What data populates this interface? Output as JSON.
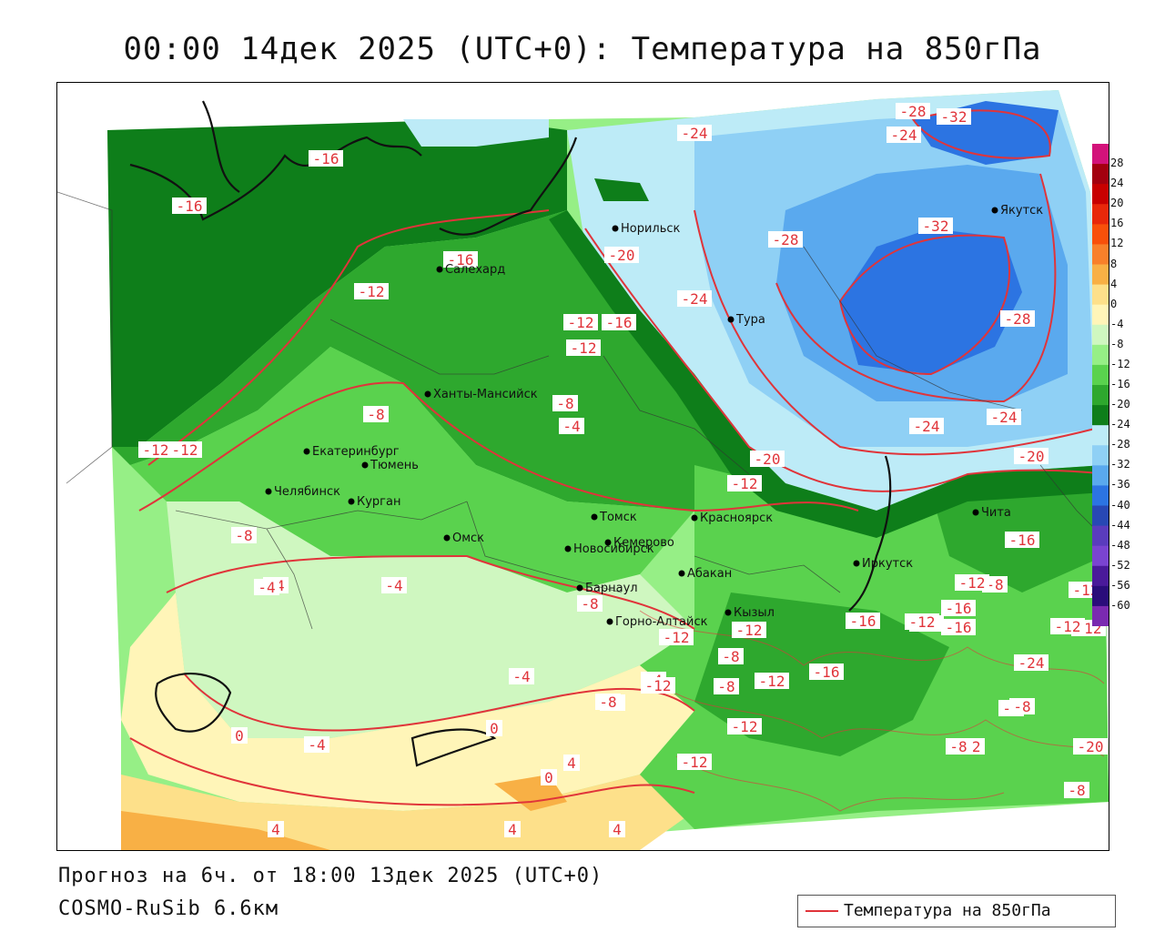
{
  "title": "00:00 14дек 2025 (UTC+0): Температура на 850гПа",
  "footer": {
    "forecast": "Прогноз на 6ч. от 18:00 13дек 2025 (UTC+0)",
    "model": "COSMO-RuSib 6.6км"
  },
  "legend": {
    "label": "Температура на 850гПа",
    "line_color": "#e0343a"
  },
  "colorbar": {
    "ticks": [
      "28",
      "24",
      "20",
      "16",
      "12",
      "8",
      "4",
      "0",
      "-4",
      "-8",
      "-12",
      "-16",
      "-20",
      "-24",
      "-28",
      "-32",
      "-36",
      "-40",
      "-44",
      "-48",
      "-52",
      "-56",
      "-60"
    ],
    "colors": [
      "#d3127a",
      "#a3000f",
      "#c80000",
      "#e8280a",
      "#f8500a",
      "#f8802a",
      "#f8b045",
      "#fde08a",
      "#fff5b8",
      "#cff7c0",
      "#96ef86",
      "#5ad24e",
      "#2ea82e",
      "#0e7e1a",
      "#bdebf7",
      "#8fd0f5",
      "#5aa9ee",
      "#2c74e2",
      "#2848b4",
      "#5a3cbd",
      "#7a44d1",
      "#4a1a9a",
      "#2a0d7a",
      "#7a2ab0"
    ]
  },
  "cities": [
    {
      "name": "Норильск"
    },
    {
      "name": "Якутск"
    },
    {
      "name": "Салехард"
    },
    {
      "name": "Тура"
    },
    {
      "name": "Ханты-Мансийск"
    },
    {
      "name": "Екатеринбург"
    },
    {
      "name": "Тюмень"
    },
    {
      "name": "Челябинск"
    },
    {
      "name": "Курган"
    },
    {
      "name": "Омск"
    },
    {
      "name": "Новосибирск"
    },
    {
      "name": "Томск"
    },
    {
      "name": "Красноярск"
    },
    {
      "name": "Кемерово"
    },
    {
      "name": "Барнаул"
    },
    {
      "name": "Абакан"
    },
    {
      "name": "Иркутск"
    },
    {
      "name": "Чита"
    },
    {
      "name": "Кызыл"
    },
    {
      "name": "Горно-Алтайск"
    }
  ],
  "contour_labels": [
    "-16",
    "-16",
    "-16",
    "-12",
    "-12",
    "-16",
    "-12",
    "-8",
    "-8",
    "-12",
    "-12",
    "-8",
    "-4",
    "-4",
    "-4",
    "-4",
    "0",
    "-4",
    "0",
    "4",
    "4",
    "4",
    "4",
    "0",
    "-4",
    "-4",
    "-8",
    "-4",
    "-8",
    "-12",
    "-12",
    "-8",
    "-12",
    "-8",
    "-12",
    "-12",
    "-16",
    "-16",
    "-12",
    "-12",
    "-16",
    "-12",
    "-12",
    "-8",
    "-12",
    "-8",
    "-8",
    "-12",
    "-8",
    "-12",
    "-8",
    "-16",
    "-20",
    "-20",
    "-24",
    "-24",
    "-24",
    "-28",
    "-28",
    "-32",
    "-32",
    "-28",
    "-24",
    "-24",
    "-20",
    "-24",
    "-20",
    "-12",
    "-16",
    "-12"
  ]
}
